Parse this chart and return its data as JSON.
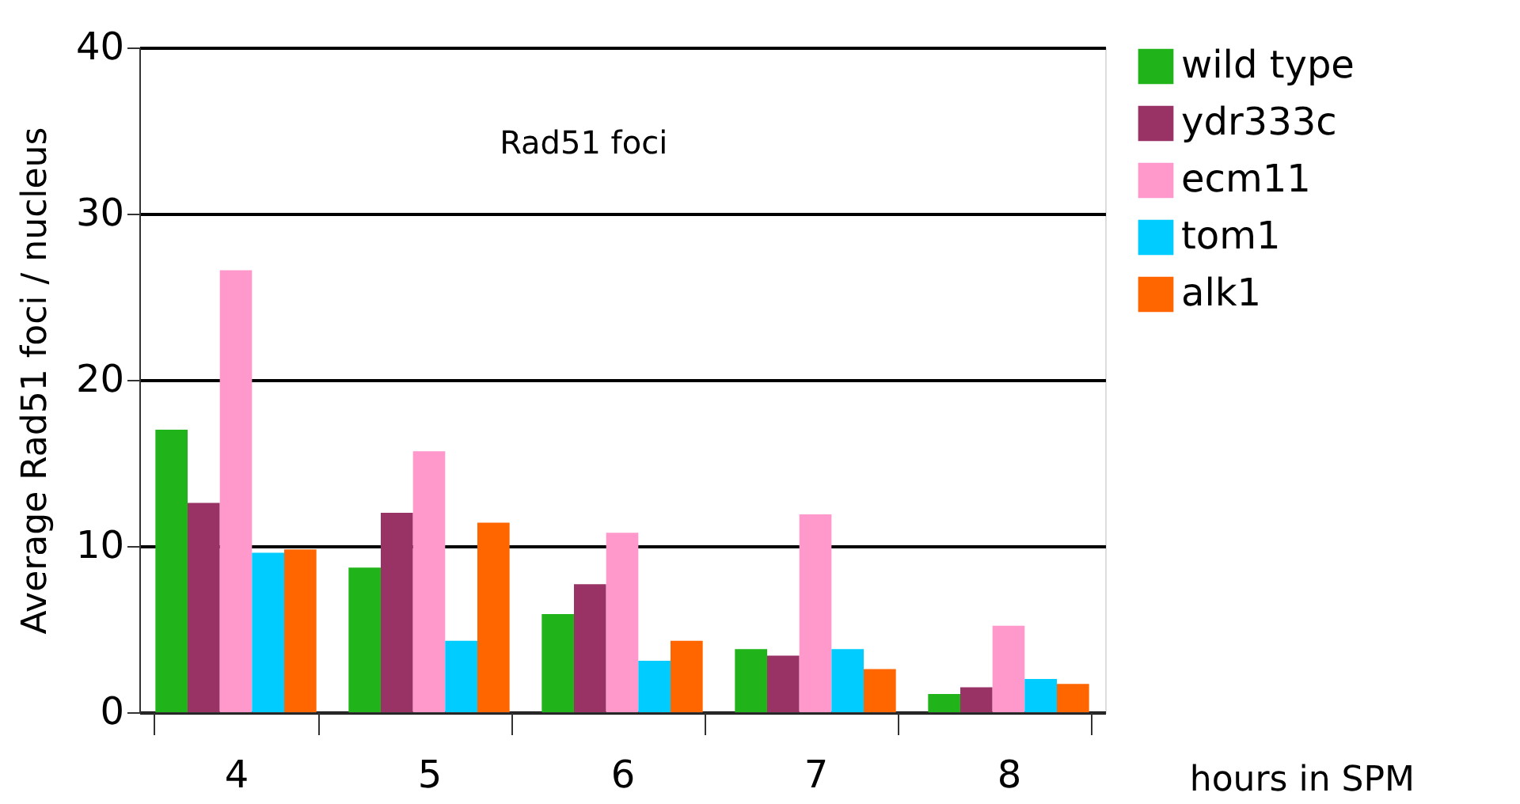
{
  "chart_data": {
    "type": "bar",
    "categories": [
      "4",
      "5",
      "6",
      "7",
      "8"
    ],
    "series": [
      {
        "name": "wild type",
        "color": "#20b41a",
        "values": [
          17.0,
          8.7,
          5.9,
          3.8,
          1.1
        ]
      },
      {
        "name": "ydr333c",
        "color": "#993366",
        "values": [
          12.6,
          12.0,
          7.7,
          3.4,
          1.5
        ]
      },
      {
        "name": "ecm11",
        "color": "#ff99cc",
        "values": [
          26.6,
          15.7,
          10.8,
          11.9,
          5.2
        ]
      },
      {
        "name": "tom1",
        "color": "#00ccff",
        "values": [
          9.6,
          4.3,
          3.1,
          3.8,
          2.0
        ]
      },
      {
        "name": "alk1",
        "color": "#ff6600",
        "values": [
          9.8,
          11.4,
          4.3,
          2.6,
          1.7
        ]
      }
    ],
    "ylim": [
      0,
      40
    ],
    "yticks": [
      0,
      10,
      20,
      30,
      40
    ],
    "grid": "y",
    "legend": "right",
    "ylabel": "Average Rad51 foci / nucleus",
    "xlabel": "hours in SPM",
    "annotations": [
      "Rad51 foci"
    ]
  }
}
